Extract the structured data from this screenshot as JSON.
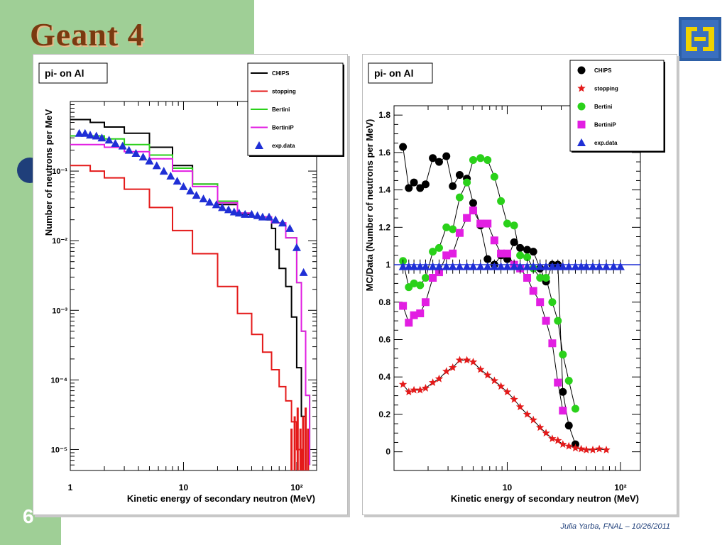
{
  "slide": {
    "logo_text": "Geant 4",
    "slide_number": "6",
    "footer": "Julia Yarba, FNAL – 10/26/2011"
  },
  "colors": {
    "chips": "#000000",
    "stopping": "#e41a1a",
    "bertini": "#2ad11a",
    "bertinip": "#e21ee2",
    "exp": "#1f2fd6"
  },
  "chart_data": [
    {
      "type": "line",
      "title": "pi- on Al",
      "xlabel": "Kinetic energy of secondary neutron (MeV)",
      "ylabel": "Number of neutrons per MeV",
      "xscale": "log",
      "yscale": "log",
      "xlim": [
        1,
        150
      ],
      "ylim": [
        5e-06,
        1
      ],
      "x_tick_labels": [
        "1",
        "10",
        "10²"
      ],
      "y_tick_labels": [
        "10⁻⁵",
        "10⁻⁴",
        "10⁻³",
        "10⁻²",
        "10⁻¹"
      ],
      "legend_position": "top-right",
      "legend": [
        "CHIPS",
        "stopping",
        "Bertini",
        "BertiniP",
        "exp.data"
      ],
      "series": [
        {
          "name": "CHIPS",
          "x": [
            1,
            1.5,
            2,
            3,
            5,
            8,
            12,
            20,
            30,
            40,
            55,
            60,
            65,
            70,
            80,
            90,
            100,
            110,
            120
          ],
          "y": [
            0.55,
            0.5,
            0.43,
            0.35,
            0.22,
            0.12,
            0.065,
            0.033,
            0.024,
            0.022,
            0.02,
            0.015,
            0.0075,
            0.004,
            0.0022,
            0.0008,
            0.00015,
            3e-05,
            6e-06
          ]
        },
        {
          "name": "stopping",
          "x": [
            1,
            1.5,
            2,
            3,
            5,
            8,
            12,
            20,
            30,
            40,
            50,
            60,
            70,
            80,
            90,
            100,
            110
          ],
          "y": [
            0.12,
            0.1,
            0.08,
            0.055,
            0.03,
            0.014,
            0.0065,
            0.0022,
            0.0009,
            0.00045,
            0.00025,
            0.00014,
            8e-05,
            5e-05,
            2.5e-05,
            1e-05,
            5e-06
          ]
        },
        {
          "name": "Bertini",
          "x": [
            1,
            1.5,
            2,
            3,
            5,
            8,
            12,
            20,
            30,
            40,
            60,
            80,
            100,
            110,
            120,
            130
          ],
          "y": [
            0.32,
            0.32,
            0.29,
            0.24,
            0.17,
            0.11,
            0.065,
            0.037,
            0.025,
            0.022,
            0.018,
            0.011,
            0.0025,
            0.0005,
            6e-05,
            6e-06
          ]
        },
        {
          "name": "BertiniP",
          "x": [
            1,
            1.5,
            2,
            3,
            5,
            8,
            12,
            20,
            30,
            40,
            60,
            80,
            100,
            110,
            120,
            130
          ],
          "y": [
            0.24,
            0.24,
            0.22,
            0.19,
            0.15,
            0.1,
            0.06,
            0.035,
            0.025,
            0.022,
            0.018,
            0.011,
            0.0025,
            0.0005,
            6e-05,
            6e-06
          ]
        },
        {
          "name": "exp.data",
          "x": [
            1.2,
            1.35,
            1.5,
            1.7,
            1.9,
            2.2,
            2.5,
            2.9,
            3.3,
            3.8,
            4.4,
            5,
            5.8,
            6.7,
            7.7,
            8.8,
            10,
            11.5,
            13,
            15,
            17,
            19.5,
            22,
            25,
            28,
            31,
            35,
            40,
            45,
            50,
            57,
            65,
            75,
            87,
            100,
            115
          ],
          "y": [
            0.35,
            0.35,
            0.33,
            0.32,
            0.3,
            0.28,
            0.25,
            0.23,
            0.2,
            0.18,
            0.16,
            0.14,
            0.12,
            0.1,
            0.085,
            0.072,
            0.06,
            0.052,
            0.045,
            0.04,
            0.036,
            0.033,
            0.03,
            0.028,
            0.026,
            0.025,
            0.024,
            0.024,
            0.023,
            0.022,
            0.022,
            0.02,
            0.018,
            0.015,
            0.008,
            0.0035
          ]
        }
      ]
    },
    {
      "type": "line",
      "title": "pi- on Al",
      "xlabel": "Kinetic energy of secondary neutron (MeV)",
      "ylabel": "MC/Data (Number of neutrons per MeV)",
      "xscale": "log",
      "xlim": [
        1,
        150
      ],
      "ylim": [
        -0.1,
        1.85
      ],
      "x_tick_labels": [
        "10",
        "10²"
      ],
      "y_ticks": [
        0,
        0.2,
        0.4,
        0.6,
        0.8,
        1,
        1.2,
        1.4,
        1.6,
        1.8
      ],
      "legend_position": "top-right",
      "legend": [
        "CHIPS",
        "stopping",
        "Bertini",
        "BertiniP",
        "exp.data"
      ],
      "x": [
        1.2,
        1.35,
        1.5,
        1.7,
        1.9,
        2.2,
        2.5,
        2.9,
        3.3,
        3.8,
        4.4,
        5,
        5.8,
        6.7,
        7.7,
        8.8,
        10,
        11.5,
        13,
        15,
        17,
        19.5,
        22,
        25,
        28,
        31,
        35,
        40,
        45,
        50,
        57,
        65,
        75,
        87,
        100
      ],
      "series": [
        {
          "name": "CHIPS",
          "values": [
            1.63,
            1.41,
            1.44,
            1.41,
            1.43,
            1.57,
            1.55,
            1.58,
            1.42,
            1.48,
            1.46,
            1.33,
            1.21,
            1.03,
            1.0,
            1.05,
            1.03,
            1.12,
            1.09,
            1.08,
            1.07,
            0.98,
            0.91,
            1.0,
            1.0,
            0.32,
            0.14,
            0.04,
            null,
            null,
            null,
            null,
            null,
            null,
            null
          ]
        },
        {
          "name": "stopping",
          "values": [
            0.36,
            0.32,
            0.33,
            0.33,
            0.34,
            0.37,
            0.39,
            0.43,
            0.45,
            0.49,
            0.49,
            0.48,
            0.44,
            0.41,
            0.38,
            0.35,
            0.32,
            0.28,
            0.24,
            0.2,
            0.17,
            0.13,
            0.1,
            0.07,
            0.06,
            0.04,
            0.03,
            0.02,
            0.015,
            0.01,
            0.01,
            0.015,
            0.01,
            null,
            null
          ]
        },
        {
          "name": "Bertini",
          "values": [
            1.02,
            0.88,
            0.9,
            0.89,
            0.93,
            1.07,
            1.09,
            1.2,
            1.19,
            1.36,
            1.44,
            1.56,
            1.57,
            1.56,
            1.47,
            1.34,
            1.22,
            1.21,
            1.05,
            1.04,
            0.98,
            0.93,
            0.93,
            0.8,
            0.7,
            0.52,
            0.38,
            0.23,
            null,
            null,
            null,
            null,
            null,
            null,
            null
          ]
        },
        {
          "name": "BertiniP",
          "values": [
            0.78,
            0.69,
            0.73,
            0.74,
            0.8,
            0.93,
            0.96,
            1.05,
            1.06,
            1.17,
            1.25,
            1.29,
            1.22,
            1.22,
            1.13,
            1.06,
            1.06,
            1.0,
            0.98,
            0.93,
            0.86,
            0.8,
            0.7,
            0.58,
            0.37,
            0.22,
            null,
            null,
            null,
            null,
            null,
            null,
            null,
            null,
            null
          ]
        },
        {
          "name": "exp.data",
          "values": [
            0.99,
            0.99,
            0.99,
            0.99,
            0.99,
            0.99,
            0.99,
            0.99,
            0.99,
            0.99,
            0.99,
            0.99,
            0.99,
            0.99,
            0.99,
            0.99,
            0.99,
            0.99,
            0.99,
            0.99,
            0.99,
            0.99,
            0.99,
            0.99,
            0.99,
            0.99,
            0.99,
            0.99,
            0.99,
            0.99,
            0.99,
            0.99,
            0.99,
            0.99,
            0.99
          ]
        }
      ]
    }
  ]
}
